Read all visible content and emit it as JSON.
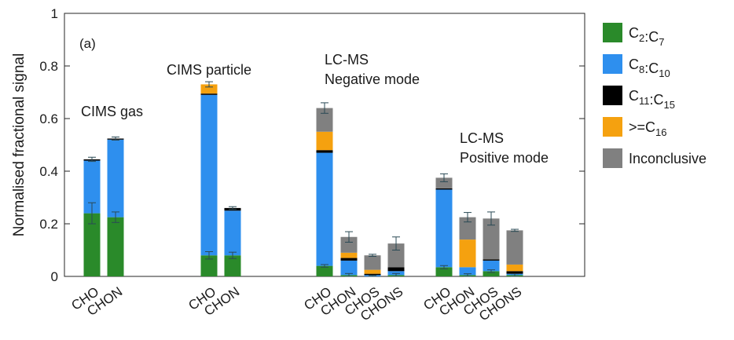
{
  "chart_data": {
    "type": "bar",
    "stacked": true,
    "panel_label": "(a)",
    "ylabel": "Normalised fractional signal",
    "ylim": [
      0,
      1
    ],
    "yticks": [
      "0",
      "0.2",
      "0.4",
      "0.6",
      "0.8",
      "1"
    ],
    "series": [
      {
        "name": "C2:C7",
        "name_main": "C",
        "sub1": "2",
        "mid": ":C",
        "sub2": "7",
        "color": "#2a8a2a"
      },
      {
        "name": "C8:C10",
        "name_main": "C",
        "sub1": "8",
        "mid": ":C",
        "sub2": "10",
        "color": "#2e8fee"
      },
      {
        "name": "C11:C15",
        "name_main": "C",
        "sub1": "11",
        "mid": ":C",
        "sub2": "15",
        "color": "#000000"
      },
      {
        "name": ">=C16",
        "name_main": ">=C",
        "sub1": "16",
        "mid": "",
        "sub2": "",
        "color": "#f5a10f"
      },
      {
        "name": "Inconclusive",
        "name_main": "Inconclusive",
        "sub1": "",
        "mid": "",
        "sub2": "",
        "color": "#808080"
      }
    ],
    "groups": [
      {
        "label_lines": [
          "CIMS gas"
        ],
        "bars": [
          {
            "category": "CHO",
            "values": [
              0.24,
              0.2,
              0.005,
              0.0,
              0.0
            ],
            "total": 0.445,
            "err_total": 0.008,
            "err_lower": 0.04
          },
          {
            "category": "CHON",
            "values": [
              0.225,
              0.295,
              0.004,
              0.0,
              0.0
            ],
            "total": 0.524,
            "err_total": 0.006,
            "err_lower": 0.02
          }
        ]
      },
      {
        "label_lines": [
          "CIMS particle"
        ],
        "bars": [
          {
            "category": "CHO",
            "values": [
              0.08,
              0.61,
              0.005,
              0.035,
              0.0
            ],
            "total": 0.73,
            "err_total": 0.01,
            "err_lower": 0.014
          },
          {
            "category": "CHON",
            "values": [
              0.08,
              0.17,
              0.01,
              0.0,
              0.0
            ],
            "total": 0.26,
            "err_total": 0.005,
            "err_lower": 0.012
          }
        ]
      },
      {
        "label_lines": [
          "LC-MS",
          "Negative mode"
        ],
        "bars": [
          {
            "category": "CHO",
            "values": [
              0.04,
              0.43,
              0.01,
              0.07,
              0.09
            ],
            "total": 0.64,
            "err_total": 0.02,
            "err_lower": 0.005
          },
          {
            "category": "CHON",
            "values": [
              0.005,
              0.055,
              0.01,
              0.02,
              0.06
            ],
            "total": 0.15,
            "err_total": 0.02,
            "err_lower": 0.006
          },
          {
            "category": "CHOS",
            "values": [
              0.0,
              0.005,
              0.005,
              0.015,
              0.055
            ],
            "total": 0.08,
            "err_total": 0.004,
            "err_lower": 0.004
          },
          {
            "category": "CHONS",
            "values": [
              0.005,
              0.015,
              0.015,
              0.0,
              0.09
            ],
            "total": 0.125,
            "err_total": 0.025,
            "err_lower": 0.006
          }
        ]
      },
      {
        "label_lines": [
          "LC-MS",
          "Positive mode"
        ],
        "bars": [
          {
            "category": "CHO",
            "values": [
              0.035,
              0.295,
              0.005,
              0.0,
              0.04
            ],
            "total": 0.375,
            "err_total": 0.015,
            "err_lower": 0.006
          },
          {
            "category": "CHON",
            "values": [
              0.005,
              0.03,
              0.0,
              0.105,
              0.085
            ],
            "total": 0.225,
            "err_total": 0.018,
            "err_lower": 0.005
          },
          {
            "category": "CHOS",
            "values": [
              0.02,
              0.04,
              0.005,
              0.0,
              0.155
            ],
            "total": 0.22,
            "err_total": 0.025,
            "err_lower": 0.005
          },
          {
            "category": "CHONS",
            "values": [
              0.005,
              0.005,
              0.01,
              0.025,
              0.13
            ],
            "total": 0.175,
            "err_total": 0.004,
            "err_lower": 0.005
          }
        ]
      }
    ]
  }
}
